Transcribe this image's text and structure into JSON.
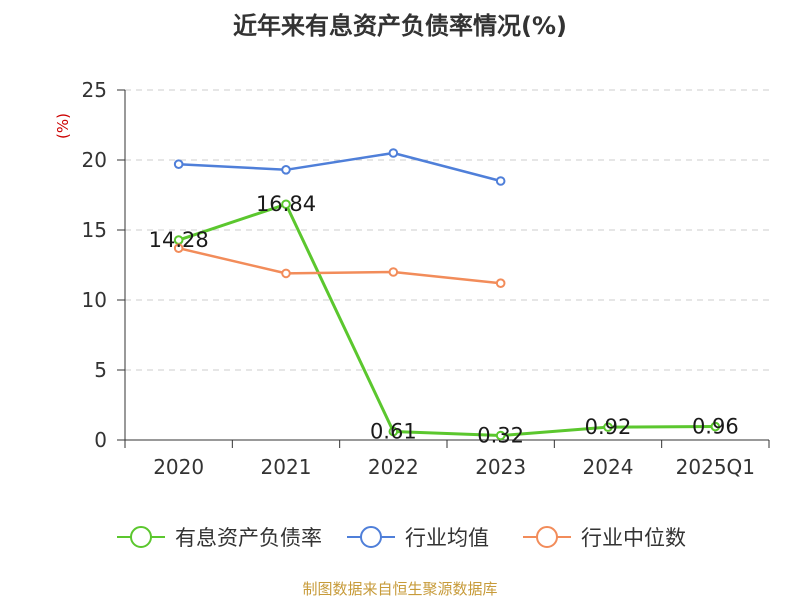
{
  "chart_data": {
    "type": "line",
    "title": "近年来有息资产负债率情况(%)",
    "ylabel": "(%)",
    "xlabel": "",
    "categories": [
      "2020",
      "2021",
      "2022",
      "2023",
      "2024",
      "2025Q1"
    ],
    "ylim": [
      0,
      25
    ],
    "yticks": [
      0,
      5,
      10,
      15,
      20,
      25
    ],
    "grid": true,
    "legend_position": "bottom",
    "series": [
      {
        "name": "有息资产负债率",
        "color": "#5bc72e",
        "values": [
          14.28,
          16.84,
          0.61,
          0.32,
          0.92,
          0.96
        ],
        "labels": [
          "14.28",
          "16.84",
          "0.61",
          "0.32",
          "0.92",
          "0.96"
        ]
      },
      {
        "name": "行业均值",
        "color": "#4f7fd9",
        "values": [
          19.7,
          19.3,
          20.5,
          18.5,
          null,
          null
        ]
      },
      {
        "name": "行业中位数",
        "color": "#f28c5a",
        "values": [
          13.7,
          11.9,
          12.0,
          11.2,
          null,
          null
        ]
      }
    ]
  },
  "footer": {
    "source": "制图数据来自恒生聚源数据库"
  },
  "colors": {
    "ylabel": "#cc0000",
    "source": "#c79b3a",
    "grid": "#cccccc",
    "axis": "#333333"
  }
}
